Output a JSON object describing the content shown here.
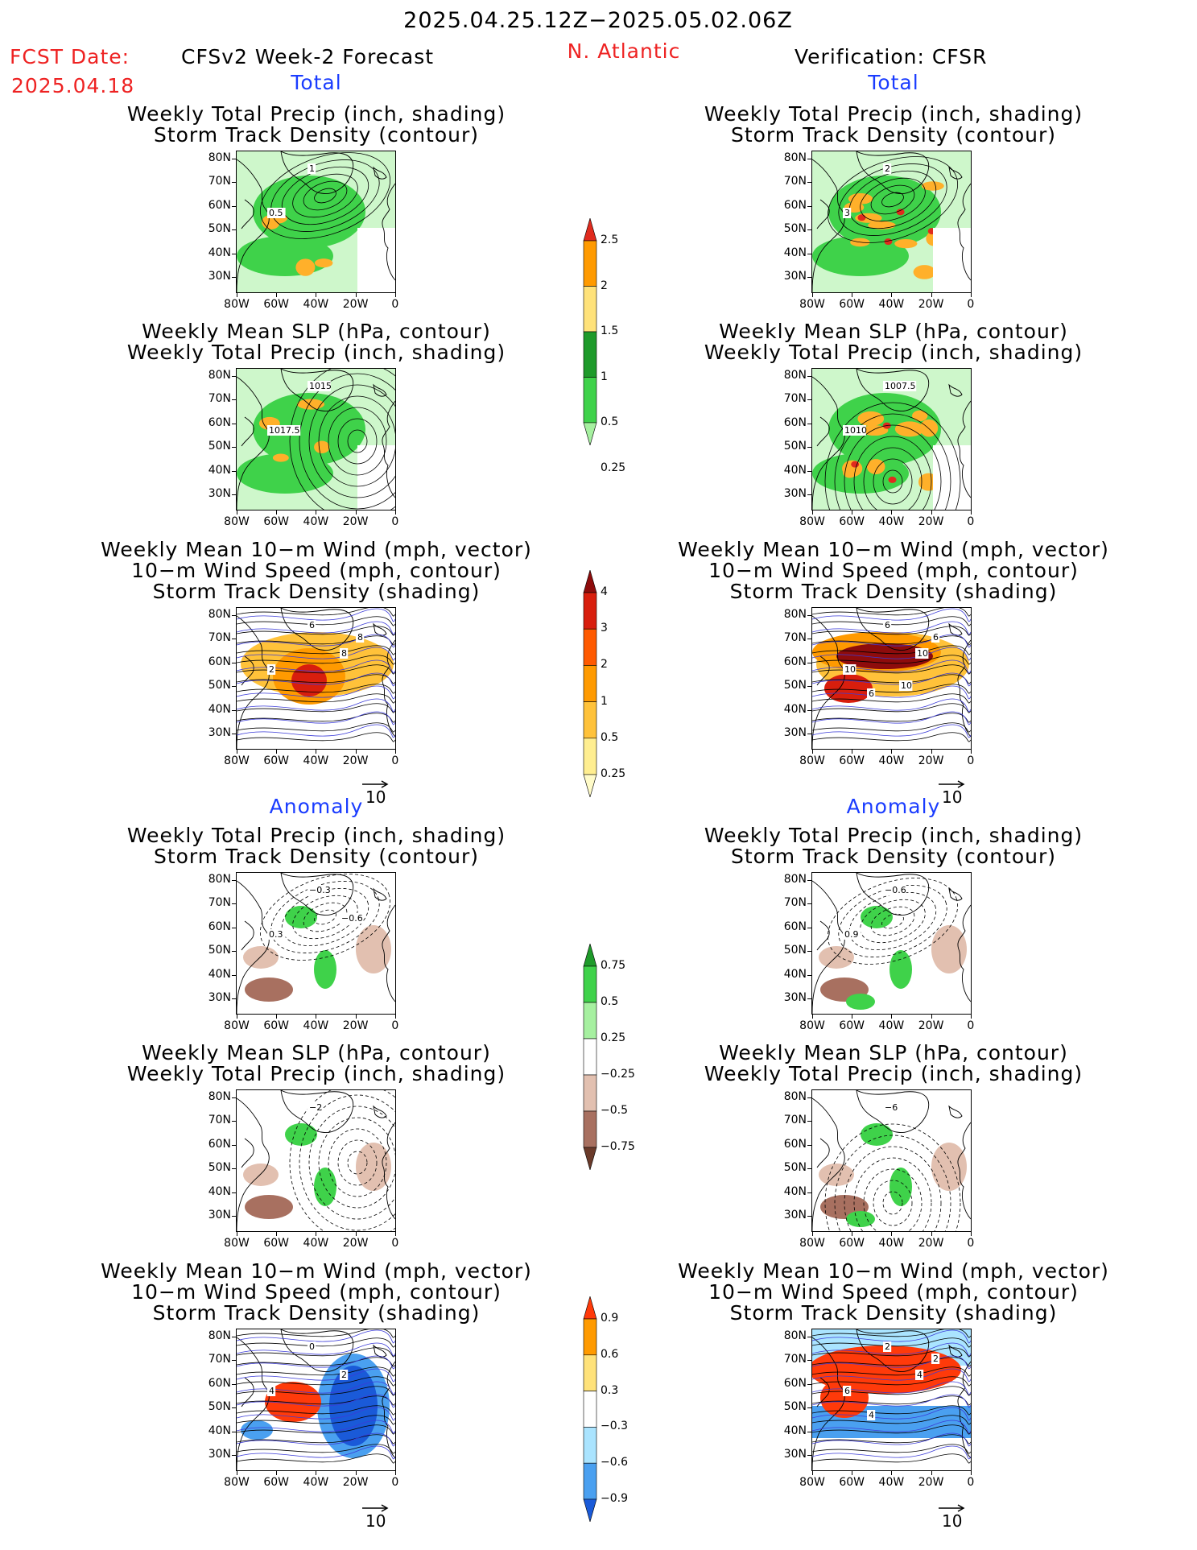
{
  "header": {
    "period": "2025.04.25.12Z−2025.05.02.06Z",
    "fcst_label": "FCST Date:",
    "fcst_date": "2025.04.18",
    "model_title": "CFSv2 Week-2 Forecast",
    "region": "N. Atlantic",
    "verification": "Verification: CFSR"
  },
  "sections": {
    "total": "Total",
    "anomaly": "Anomaly"
  },
  "panel_titles": {
    "precip_track": [
      "Weekly Total Precip (inch, shading)",
      "Storm Track Density (contour)"
    ],
    "slp_precip": [
      "Weekly Mean SLP (hPa, contour)",
      "Weekly Total Precip (inch, shading)"
    ],
    "wind_track": [
      "Weekly Mean 10−m Wind (mph, vector)",
      "10−m Wind Speed (mph, contour)",
      "Storm Track Density (shading)"
    ]
  },
  "axes": {
    "lat_labels": [
      "80N",
      "70N",
      "60N",
      "50N",
      "40N",
      "30N"
    ],
    "lon_labels": [
      "80W",
      "60W",
      "40W",
      "20W",
      "0"
    ]
  },
  "vector_ref": "10",
  "contour_labels": {
    "fcst_total_precip": [
      "1",
      "0.5"
    ],
    "verif_total_precip": [
      "2",
      "3"
    ],
    "fcst_total_slp": [
      "1015",
      "1017.5"
    ],
    "verif_total_slp": [
      "1007.5",
      "1010"
    ],
    "fcst_total_wind": [
      "6",
      "2",
      "8",
      "8"
    ],
    "verif_total_wind": [
      "6",
      "10",
      "10",
      "6",
      "6",
      "10"
    ],
    "fcst_anom_precip": [
      "−0.3",
      "0.3",
      "−0.6"
    ],
    "verif_anom_precip": [
      "−0.6",
      "0.9"
    ],
    "fcst_anom_slp": [
      "−2"
    ],
    "verif_anom_slp": [
      "−6"
    ],
    "fcst_anom_wind": [
      "0",
      "4",
      "2"
    ],
    "verif_anom_wind": [
      "2",
      "6",
      "4",
      "2",
      "4"
    ]
  },
  "colorbars": {
    "total_precip": {
      "labels": [
        "2.5",
        "2",
        "1.5",
        "1",
        "0.5",
        "0.25"
      ],
      "colors": [
        "#e02b1e",
        "#ff9a00",
        "#ffe27a",
        "#1e9a2a",
        "#3fd24a",
        "#a6f0a0"
      ]
    },
    "total_track": {
      "labels": [
        "4",
        "3",
        "2",
        "1",
        "0.5",
        "0.25"
      ],
      "colors": [
        "#8e0c0c",
        "#d81e0d",
        "#ff5a00",
        "#ff9a00",
        "#ffc23a",
        "#ffee90",
        "#fffbc8"
      ]
    },
    "anom_precip": {
      "labels": [
        "0.75",
        "0.5",
        "0.25",
        "−0.25",
        "−0.5",
        "−0.75"
      ],
      "colors": [
        "#1e9a2a",
        "#3fd24a",
        "#a6f0a0",
        "#ffffff",
        "#e2c0b0",
        "#a87060",
        "#6a3a2a"
      ]
    },
    "anom_track": {
      "labels": [
        "0.9",
        "0.6",
        "0.3",
        "−0.3",
        "−0.6",
        "−0.9"
      ],
      "colors": [
        "#ff3a0a",
        "#ff9a00",
        "#ffe27a",
        "#ffffff",
        "#aae4ff",
        "#4aa0f0",
        "#1a5ad8"
      ]
    }
  }
}
